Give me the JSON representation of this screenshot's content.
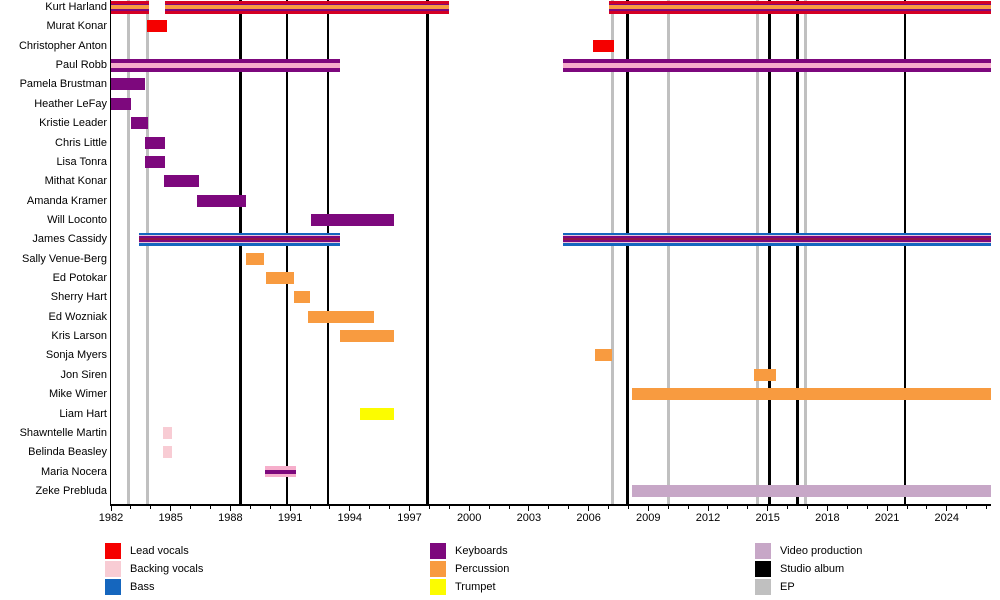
{
  "chart_data": {
    "type": "timeline",
    "description": "Band members timeline (Gantt-style) with role color bars and release event lines",
    "x_axis": {
      "min": 1982,
      "max": 2026.2,
      "tick_labels": [
        "1982",
        "1985",
        "1988",
        "1991",
        "1994",
        "1997",
        "2000",
        "2003",
        "2006",
        "2009",
        "2012",
        "2015",
        "2018",
        "2021",
        "2024"
      ],
      "tick_label_years": [
        1982,
        1985,
        1988,
        1991,
        1994,
        1997,
        2000,
        2003,
        2006,
        2009,
        2012,
        2015,
        2018,
        2021,
        2024
      ],
      "minor_tick_every": 1
    },
    "colors": {
      "red": "#f50000",
      "red2": "#d40024",
      "red_deep": "#931247",
      "pink": "#f8ccd4",
      "pink_mid": "#f6aecb",
      "pink_line": "#ecc4da",
      "blue": "#1566be",
      "purple": "#7d087d",
      "orange": "#f89b40",
      "yellow": "#fcfc00",
      "video": "#c7a7c7",
      "album": "#000000",
      "ep": "#c0c0c0"
    },
    "members": [
      {
        "name": "Kurt Harland",
        "roles": [
          "Lead vocals",
          "Keyboards",
          "Percussion"
        ],
        "stripes": [
          [
            "red2",
            3
          ],
          [
            "purple",
            1.5
          ],
          [
            "orange",
            4
          ],
          [
            "purple",
            1.5
          ],
          [
            "red2",
            3
          ]
        ],
        "segments": [
          [
            1982.0,
            1983.9
          ],
          [
            1984.7,
            1999.0
          ],
          [
            2007.0,
            2026.2
          ]
        ]
      },
      {
        "name": "Murat Konar",
        "roles": [
          "Lead vocals"
        ],
        "stripes": [
          [
            "red",
            12
          ]
        ],
        "segments": [
          [
            1983.8,
            1984.8
          ]
        ]
      },
      {
        "name": "Christopher Anton",
        "roles": [
          "Lead vocals"
        ],
        "stripes": [
          [
            "red",
            12
          ]
        ],
        "segments": [
          [
            2006.2,
            2007.3
          ]
        ]
      },
      {
        "name": "Paul Robb",
        "roles": [
          "Keyboards",
          "Backing vocals"
        ],
        "stripes": [
          [
            "purple",
            4
          ],
          [
            "pink_mid",
            5
          ],
          [
            "purple",
            4
          ]
        ],
        "segments": [
          [
            1982.0,
            1993.5
          ],
          [
            2004.7,
            2026.2
          ]
        ]
      },
      {
        "name": "Pamela Brustman",
        "roles": [
          "Keyboards"
        ],
        "stripes": [
          [
            "purple",
            12
          ]
        ],
        "segments": [
          [
            1982.0,
            1983.7
          ]
        ]
      },
      {
        "name": "Heather LeFay",
        "roles": [
          "Keyboards"
        ],
        "stripes": [
          [
            "purple",
            12
          ]
        ],
        "segments": [
          [
            1982.0,
            1983.0
          ]
        ]
      },
      {
        "name": "Kristie Leader",
        "roles": [
          "Keyboards"
        ],
        "stripes": [
          [
            "purple",
            12
          ]
        ],
        "segments": [
          [
            1983.0,
            1983.85
          ]
        ]
      },
      {
        "name": "Chris Little",
        "roles": [
          "Keyboards"
        ],
        "stripes": [
          [
            "purple",
            12
          ]
        ],
        "segments": [
          [
            1983.7,
            1984.7
          ]
        ]
      },
      {
        "name": "Lisa Tonra",
        "roles": [
          "Keyboards"
        ],
        "stripes": [
          [
            "purple",
            12
          ]
        ],
        "segments": [
          [
            1983.7,
            1984.7
          ]
        ]
      },
      {
        "name": "Mithat Konar",
        "roles": [
          "Keyboards"
        ],
        "stripes": [
          [
            "purple",
            12
          ]
        ],
        "segments": [
          [
            1984.65,
            1986.4
          ]
        ]
      },
      {
        "name": "Amanda Kramer",
        "roles": [
          "Keyboards"
        ],
        "stripes": [
          [
            "purple",
            12
          ]
        ],
        "segments": [
          [
            1986.3,
            1988.8
          ]
        ]
      },
      {
        "name": "Will Loconto",
        "roles": [
          "Keyboards"
        ],
        "stripes": [
          [
            "purple",
            12
          ]
        ],
        "segments": [
          [
            1992.05,
            1996.2
          ]
        ]
      },
      {
        "name": "James Cassidy",
        "roles": [
          "Bass",
          "Backing vocals",
          "Keyboards",
          "Lead vocals"
        ],
        "stripes": [
          [
            "blue",
            2.5
          ],
          [
            "pink_line",
            1
          ],
          [
            "purple",
            2
          ],
          [
            "red_deep",
            2
          ],
          [
            "purple",
            2
          ],
          [
            "pink_line",
            1
          ],
          [
            "blue",
            2.5
          ]
        ],
        "segments": [
          [
            1983.4,
            1993.5
          ],
          [
            2004.7,
            2026.2
          ]
        ]
      },
      {
        "name": "Sally Venue-Berg",
        "roles": [
          "Percussion"
        ],
        "stripes": [
          [
            "orange",
            12
          ]
        ],
        "segments": [
          [
            1988.8,
            1989.7
          ]
        ]
      },
      {
        "name": "Ed Potokar",
        "roles": [
          "Percussion"
        ],
        "stripes": [
          [
            "orange",
            12
          ]
        ],
        "segments": [
          [
            1989.8,
            1991.2
          ]
        ]
      },
      {
        "name": "Sherry Hart",
        "roles": [
          "Percussion"
        ],
        "stripes": [
          [
            "orange",
            12
          ]
        ],
        "segments": [
          [
            1991.2,
            1992.0
          ]
        ]
      },
      {
        "name": "Ed Wozniak",
        "roles": [
          "Percussion"
        ],
        "stripes": [
          [
            "orange",
            12
          ]
        ],
        "segments": [
          [
            1991.9,
            1995.2
          ]
        ]
      },
      {
        "name": "Kris Larson",
        "roles": [
          "Percussion"
        ],
        "stripes": [
          [
            "orange",
            12
          ]
        ],
        "segments": [
          [
            1993.5,
            1996.2
          ]
        ]
      },
      {
        "name": "Sonja Myers",
        "roles": [
          "Percussion"
        ],
        "stripes": [
          [
            "orange",
            12
          ]
        ],
        "segments": [
          [
            2006.3,
            2007.2
          ]
        ]
      },
      {
        "name": "Jon Siren",
        "roles": [
          "Percussion"
        ],
        "stripes": [
          [
            "orange",
            12
          ]
        ],
        "segments": [
          [
            2014.3,
            2015.4
          ]
        ]
      },
      {
        "name": "Mike Wimer",
        "roles": [
          "Percussion"
        ],
        "stripes": [
          [
            "orange",
            12
          ]
        ],
        "segments": [
          [
            2008.2,
            2026.2
          ]
        ]
      },
      {
        "name": "Liam Hart",
        "roles": [
          "Trumpet"
        ],
        "stripes": [
          [
            "yellow",
            12
          ]
        ],
        "segments": [
          [
            1994.5,
            1996.2
          ]
        ]
      },
      {
        "name": "Shawntelle Martin",
        "roles": [
          "Backing vocals"
        ],
        "stripes": [
          [
            "pink",
            12
          ]
        ],
        "segments": [
          [
            1984.6,
            1985.05
          ]
        ]
      },
      {
        "name": "Belinda Beasley",
        "roles": [
          "Backing vocals"
        ],
        "stripes": [
          [
            "pink",
            12
          ]
        ],
        "segments": [
          [
            1984.6,
            1985.05
          ]
        ]
      },
      {
        "name": "Maria Nocera",
        "roles": [
          "Backing vocals",
          "Keyboards"
        ],
        "stripes": [
          [
            "pink_mid",
            3.5
          ],
          [
            "purple",
            4
          ],
          [
            "pink_mid",
            3.5
          ]
        ],
        "segments": [
          [
            1989.75,
            1991.3
          ]
        ]
      },
      {
        "name": "Zeke Prebluda",
        "roles": [
          "Video production"
        ],
        "stripes": [
          [
            "video",
            12
          ]
        ],
        "segments": [
          [
            2008.2,
            2026.2
          ]
        ]
      }
    ],
    "events": {
      "studio_albums": [
        1988.5,
        1990.85,
        1992.9,
        1997.9,
        2007.95,
        2015.1,
        2016.5,
        2021.9
      ],
      "eps": [
        1982.9,
        1983.85,
        2007.2,
        2010.0,
        2014.5,
        2016.9
      ]
    },
    "legend": [
      {
        "label": "Lead vocals",
        "color_key": "red"
      },
      {
        "label": "Backing vocals",
        "color_key": "pink"
      },
      {
        "label": "Bass",
        "color_key": "blue"
      },
      {
        "label": "Keyboards",
        "color_key": "purple"
      },
      {
        "label": "Percussion",
        "color_key": "orange"
      },
      {
        "label": "Trumpet",
        "color_key": "yellow"
      },
      {
        "label": "Video production",
        "color_key": "video"
      },
      {
        "label": "Studio album",
        "color_key": "album"
      },
      {
        "label": "EP",
        "color_key": "ep"
      }
    ]
  }
}
